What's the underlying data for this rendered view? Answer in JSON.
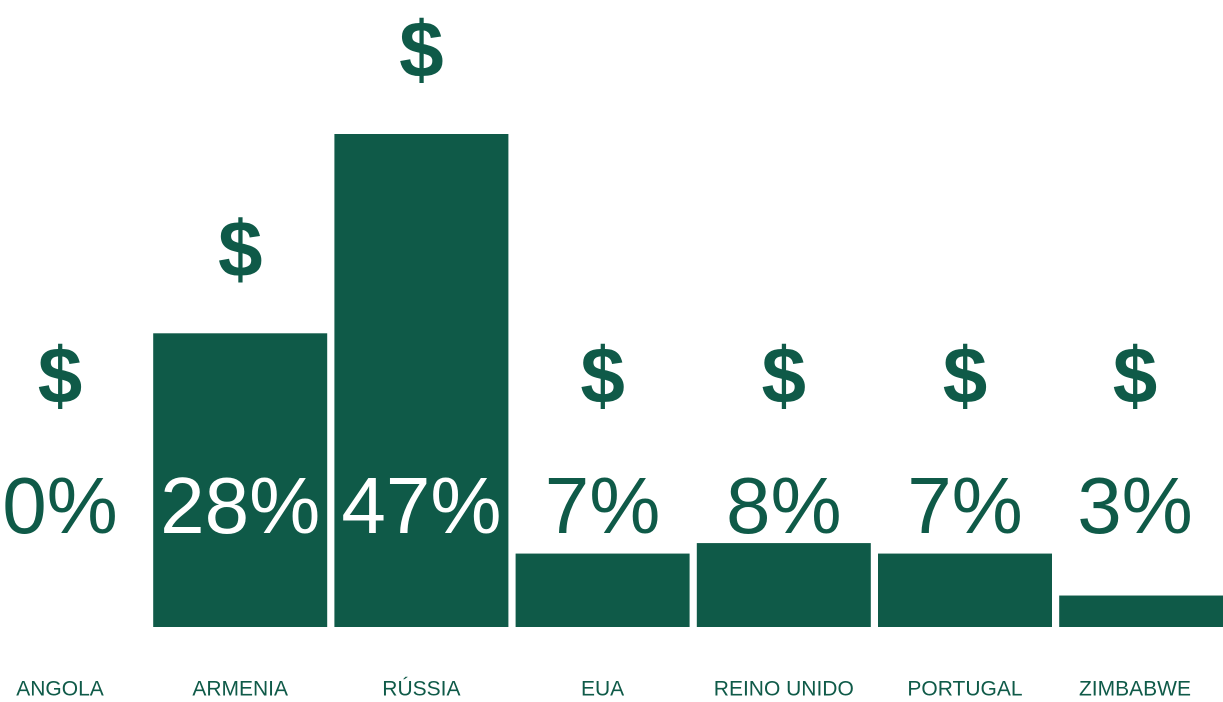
{
  "chart_data": {
    "type": "bar",
    "categories": [
      "ANGOLA",
      "ARMENIA",
      "RÚSSIA",
      "EUA",
      "REINO UNIDO",
      "PORTUGAL",
      "ZIMBABWE"
    ],
    "values": [
      0,
      28,
      47,
      7,
      8,
      7,
      3
    ],
    "value_labels": [
      "0%",
      "28%",
      "47%",
      "7%",
      "8%",
      "7%",
      "3%"
    ],
    "symbol": "$",
    "color": "#0f5a48",
    "ylim": [
      0,
      47
    ]
  }
}
